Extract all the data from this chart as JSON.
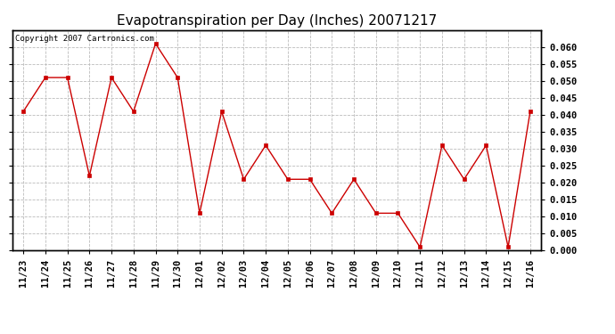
{
  "title": "Evapotranspiration per Day (Inches) 20071217",
  "copyright_text": "Copyright 2007 Cartronics.com",
  "x_labels": [
    "11/23",
    "11/24",
    "11/25",
    "11/26",
    "11/27",
    "11/28",
    "11/29",
    "11/30",
    "12/01",
    "12/02",
    "12/03",
    "12/04",
    "12/05",
    "12/06",
    "12/07",
    "12/08",
    "12/09",
    "12/10",
    "12/11",
    "12/12",
    "12/13",
    "12/14",
    "12/15",
    "12/16"
  ],
  "y_values": [
    0.041,
    0.051,
    0.051,
    0.022,
    0.051,
    0.041,
    0.061,
    0.051,
    0.011,
    0.041,
    0.021,
    0.031,
    0.021,
    0.021,
    0.011,
    0.021,
    0.011,
    0.011,
    0.001,
    0.031,
    0.021,
    0.031,
    0.001,
    0.041
  ],
  "line_color": "#cc0000",
  "marker": "s",
  "marker_size": 3,
  "background_color": "#ffffff",
  "grid_color": "#bbbbbb",
  "ylim": [
    0.0,
    0.065
  ],
  "yticks": [
    0.0,
    0.005,
    0.01,
    0.015,
    0.02,
    0.025,
    0.03,
    0.035,
    0.04,
    0.045,
    0.05,
    0.055,
    0.06
  ],
  "title_fontsize": 11,
  "copyright_fontsize": 6.5,
  "tick_fontsize": 7.5
}
